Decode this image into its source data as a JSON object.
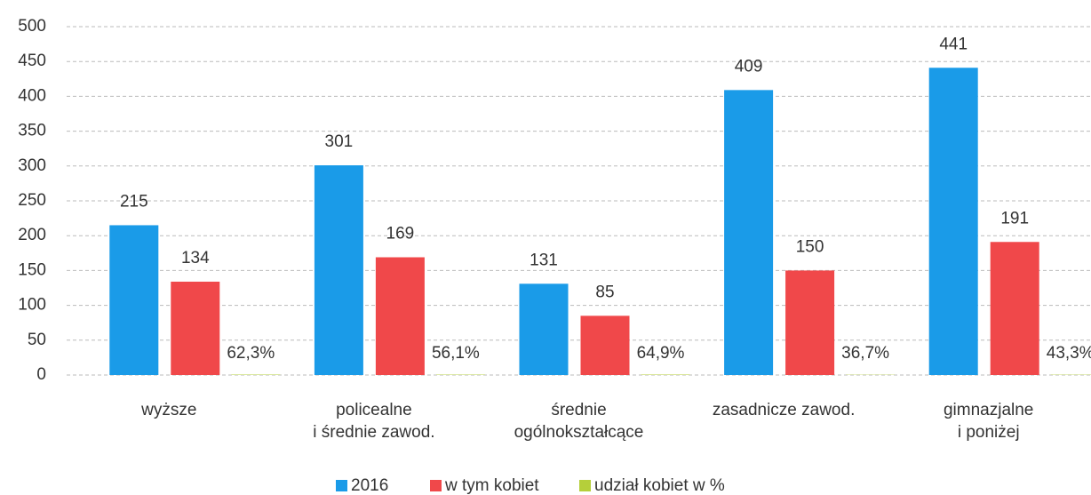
{
  "chart_data": {
    "type": "bar",
    "categories": [
      [
        "wyższe"
      ],
      [
        "policealne",
        "i średnie zawod."
      ],
      [
        "średnie",
        "ogólnokształcące"
      ],
      [
        "zasadnicze zawod."
      ],
      [
        "gimnazjalne",
        "i poniżej"
      ]
    ],
    "series": [
      {
        "name": "2016",
        "color": "#1a9be8",
        "values": [
          215,
          301,
          131,
          409,
          441
        ]
      },
      {
        "name": "w tym kobiet",
        "color": "#f0484a",
        "values": [
          134,
          169,
          85,
          150,
          191
        ]
      },
      {
        "name": "udział kobiet w %",
        "color": "#b5cf3a",
        "values": [
          0.623,
          0.561,
          0.649,
          0.367,
          0.433
        ],
        "value_labels": [
          "62,3%",
          "56,1%",
          "64,9%",
          "36,7%",
          "43,3%"
        ]
      }
    ],
    "ylim": [
      0,
      500
    ],
    "yticks": [
      0,
      50,
      100,
      150,
      200,
      250,
      300,
      350,
      400,
      450,
      500
    ],
    "grid": true,
    "legend": "bottom"
  }
}
